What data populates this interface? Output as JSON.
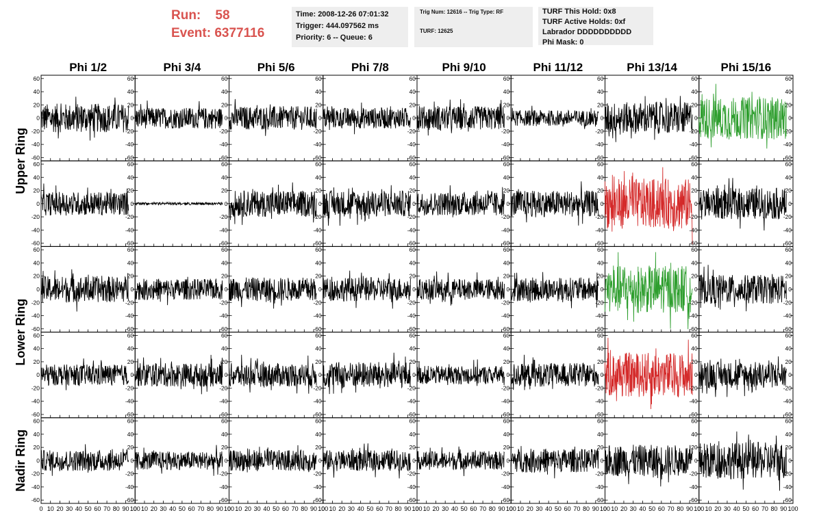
{
  "header": {
    "run_label": "Run:",
    "run_value": "58",
    "event_label": "Event:",
    "event_value": "6377116",
    "time": "Time: 2008-12-26 07:01:32",
    "trigger": "Trigger: 444.097562 ms",
    "priority": "Priority: 6 -- Queue: 6",
    "trig_num": "Trig Num: 12616 -- Trig Type: RF",
    "turf": "TURF: 12625",
    "turf_hold": "TURF This Hold: 0x8",
    "turf_active": "TURF Active Holds: 0xf",
    "labrador": "Labrador DDDDDDDDDD",
    "phi_mask": "Phi Mask: 0"
  },
  "colors": {
    "header_text": "#d9534f",
    "info_bg": "#eeeeee",
    "trace_default": "#000000",
    "trace_green": "#2e9e2e",
    "trace_red": "#d42a2a"
  },
  "chart_data": {
    "type": "line",
    "columns": [
      "Phi 1/2",
      "Phi 3/4",
      "Phi 5/6",
      "Phi 7/8",
      "Phi 9/10",
      "Phi 11/12",
      "Phi 13/14",
      "Phi 15/16"
    ],
    "rows": [
      "Upper Ring",
      "Lower Ring",
      "Nadir Ring"
    ],
    "xlim": [
      0,
      100
    ],
    "ylim": [
      -65,
      65
    ],
    "x_ticks": [
      0,
      10,
      20,
      30,
      40,
      50,
      60,
      70,
      80,
      90,
      100
    ],
    "y_ticks": [
      -60,
      -40,
      -20,
      0,
      20,
      40,
      60
    ],
    "x_tick_labels": [
      "0",
      "10",
      "20",
      "30",
      "40",
      "50",
      "60",
      "70",
      "80",
      "90",
      "100"
    ],
    "y_tick_labels": [
      "-60",
      "-40",
      "-20",
      "0",
      "20",
      "40",
      "60"
    ],
    "panel_rows": 5,
    "samples_per_trace": 260,
    "trace_amplitude": [
      [
        22,
        16,
        18,
        16,
        18,
        12,
        24,
        32
      ],
      [
        18,
        2,
        20,
        20,
        18,
        20,
        38,
        24
      ],
      [
        20,
        16,
        18,
        18,
        16,
        18,
        36,
        22
      ],
      [
        16,
        18,
        18,
        20,
        14,
        18,
        34,
        20
      ],
      [
        16,
        14,
        16,
        16,
        14,
        18,
        24,
        28
      ]
    ],
    "trace_color": [
      [
        "default",
        "default",
        "default",
        "default",
        "default",
        "default",
        "default",
        "green"
      ],
      [
        "default",
        "default",
        "default",
        "default",
        "default",
        "default",
        "red",
        "default"
      ],
      [
        "default",
        "default",
        "default",
        "default",
        "default",
        "default",
        "green",
        "default"
      ],
      [
        "default",
        "default",
        "default",
        "default",
        "default",
        "default",
        "red",
        "default"
      ],
      [
        "default",
        "default",
        "default",
        "default",
        "default",
        "default",
        "default",
        "default"
      ]
    ]
  }
}
